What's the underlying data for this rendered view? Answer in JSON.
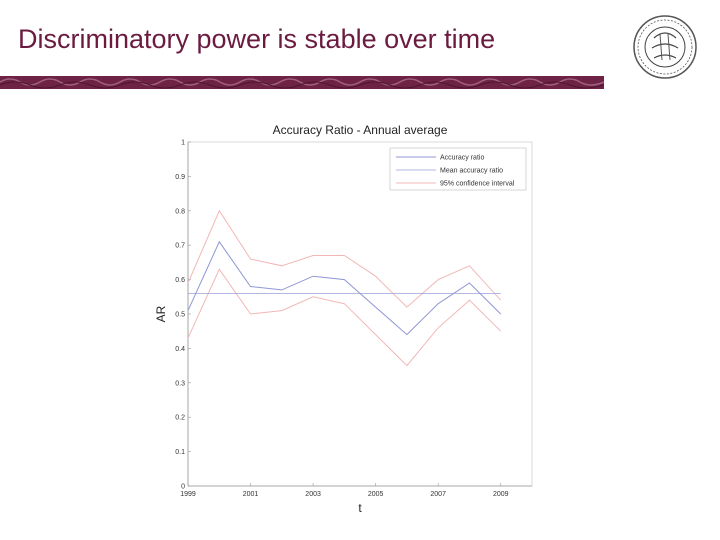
{
  "slide": {
    "title": "Discriminatory power is stable over time"
  },
  "colors": {
    "title": "#6a1b3f",
    "banner": "#6e2346",
    "accuracy_ratio": "#8f96d3",
    "mean_accuracy_ratio": "#9aa0d8",
    "confidence_interval": "#f2b7b7"
  },
  "chart_data": {
    "type": "line",
    "title": "Accuracy Ratio - Annual average",
    "xlabel": "t",
    "ylabel": "AR",
    "xlim": [
      1999,
      2010
    ],
    "ylim": [
      0,
      1
    ],
    "x_ticks": [
      1999,
      2001,
      2003,
      2005,
      2007,
      2009
    ],
    "y_ticks": [
      0,
      0.1,
      0.2,
      0.3,
      0.4,
      0.5,
      0.6,
      0.7,
      0.8,
      0.9,
      1
    ],
    "legend_position": "top-right",
    "grid": false,
    "x": [
      1999,
      2000,
      2001,
      2002,
      2003,
      2004,
      2005,
      2006,
      2007,
      2008,
      2009
    ],
    "series": [
      {
        "name": "Accuracy ratio",
        "values": [
          0.51,
          0.71,
          0.58,
          0.57,
          0.61,
          0.6,
          0.52,
          0.44,
          0.53,
          0.59,
          0.5
        ]
      },
      {
        "name": "Mean accuracy ratio",
        "values": [
          0.56,
          0.56,
          0.56,
          0.56,
          0.56,
          0.56,
          0.56,
          0.56,
          0.56,
          0.56,
          0.56
        ]
      },
      {
        "name": "95% confidence interval",
        "upper": [
          0.59,
          0.8,
          0.66,
          0.64,
          0.67,
          0.67,
          0.61,
          0.52,
          0.6,
          0.64,
          0.54
        ],
        "lower": [
          0.43,
          0.63,
          0.5,
          0.51,
          0.55,
          0.53,
          0.44,
          0.35,
          0.46,
          0.54,
          0.45
        ]
      }
    ]
  }
}
